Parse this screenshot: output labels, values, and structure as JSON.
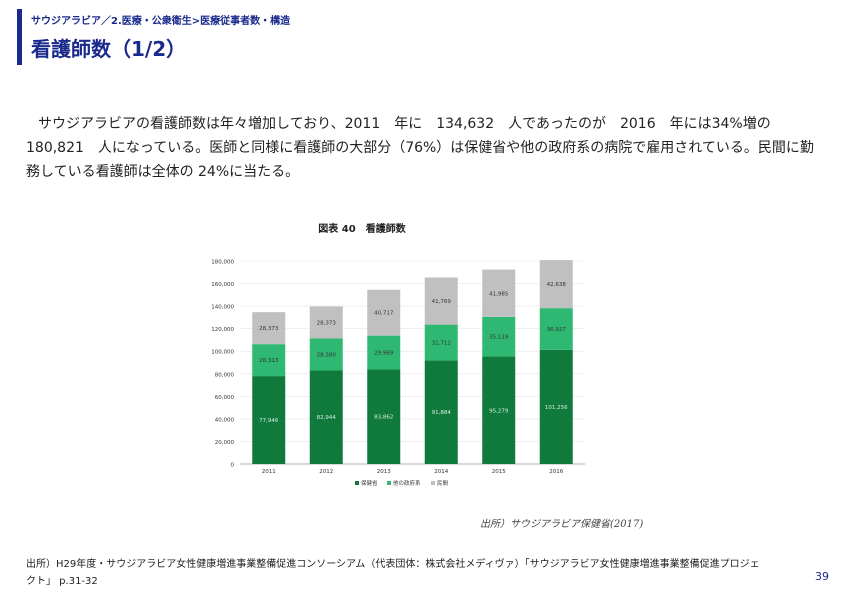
{
  "header": {
    "breadcrumb": "サウジアラビア／2.医療・公衆衛生>医療従事者数・構造",
    "title": "看護師数（1/2）"
  },
  "body": {
    "paragraph": "サウジアラビアの看護師数は年々増加しており、2011　年に　134,632　人であったのが　2016　年には34%増の　180,821　人になっている。医師と同様に看護師の大部分（76%）は保健省や他の政府系の病院で雇用されている。民間に勤務している看護師は全体の 24%に当たる。"
  },
  "chart_data": {
    "type": "bar",
    "stacked": true,
    "title": "図表 40　看護師数",
    "categories": [
      "2011",
      "2012",
      "2013",
      "2014",
      "2015",
      "2016"
    ],
    "series": [
      {
        "name": "保健省",
        "color": "#0f7a3c",
        "values": [
          77946,
          82944,
          83862,
          91884,
          95279,
          101256
        ]
      },
      {
        "name": "他の政府系",
        "color": "#2fb872",
        "values": [
          28313,
          28380,
          29969,
          31712,
          35119,
          36927
        ]
      },
      {
        "name": "民間",
        "color": "#c0c0c0",
        "values": [
          28373,
          28373,
          40717,
          41769,
          41985,
          42638
        ]
      }
    ],
    "value_labels": [
      [
        "77,946",
        "82,944",
        "83,862",
        "91,884",
        "95,279",
        "101,256"
      ],
      [
        "28,313",
        "28,380",
        "29,969",
        "31,712",
        "35,119",
        "36,927"
      ],
      [
        "28,373",
        "28,373",
        "40,717",
        "41,769",
        "41,985",
        "42,638"
      ]
    ],
    "ylim": [
      0,
      180000
    ],
    "yticks": [
      0,
      20000,
      40000,
      60000,
      80000,
      100000,
      120000,
      140000,
      160000,
      180000
    ],
    "ytick_labels": [
      "0",
      "20,000",
      "40,000",
      "60,000",
      "80,000",
      "100,000",
      "120,000",
      "140,000",
      "160,000",
      "180,000"
    ],
    "legend": "bottom"
  },
  "chart_source": "出所）サウジアラビア保健省(2017)",
  "footer": {
    "source": "出所）H29年度・サウジアラビア女性健康増進事業整備促進コンソーシアム（代表団体：株式会社メディヴァ）「サウジアラビア女性健康増進事業整備促進プロジェクト」 p.31-32",
    "page_number": "39"
  }
}
